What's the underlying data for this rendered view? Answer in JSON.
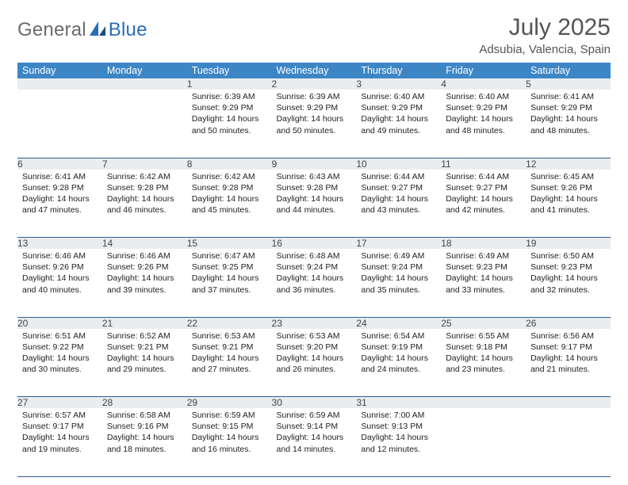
{
  "brand": {
    "part1": "General",
    "part2": "Blue"
  },
  "title": "July 2025",
  "location": "Adsubia, Valencia, Spain",
  "headerColors": {
    "band": "#3d86c6",
    "daynumBg": "#e9edf0",
    "rule": "#2f5e8f"
  },
  "weekdays": [
    "Sunday",
    "Monday",
    "Tuesday",
    "Wednesday",
    "Thursday",
    "Friday",
    "Saturday"
  ],
  "weeks": [
    [
      null,
      null,
      {
        "n": "1",
        "sr": "Sunrise: 6:39 AM",
        "ss": "Sunset: 9:29 PM",
        "d1": "Daylight: 14 hours",
        "d2": "and 50 minutes."
      },
      {
        "n": "2",
        "sr": "Sunrise: 6:39 AM",
        "ss": "Sunset: 9:29 PM",
        "d1": "Daylight: 14 hours",
        "d2": "and 50 minutes."
      },
      {
        "n": "3",
        "sr": "Sunrise: 6:40 AM",
        "ss": "Sunset: 9:29 PM",
        "d1": "Daylight: 14 hours",
        "d2": "and 49 minutes."
      },
      {
        "n": "4",
        "sr": "Sunrise: 6:40 AM",
        "ss": "Sunset: 9:29 PM",
        "d1": "Daylight: 14 hours",
        "d2": "and 48 minutes."
      },
      {
        "n": "5",
        "sr": "Sunrise: 6:41 AM",
        "ss": "Sunset: 9:29 PM",
        "d1": "Daylight: 14 hours",
        "d2": "and 48 minutes."
      }
    ],
    [
      {
        "n": "6",
        "sr": "Sunrise: 6:41 AM",
        "ss": "Sunset: 9:28 PM",
        "d1": "Daylight: 14 hours",
        "d2": "and 47 minutes."
      },
      {
        "n": "7",
        "sr": "Sunrise: 6:42 AM",
        "ss": "Sunset: 9:28 PM",
        "d1": "Daylight: 14 hours",
        "d2": "and 46 minutes."
      },
      {
        "n": "8",
        "sr": "Sunrise: 6:42 AM",
        "ss": "Sunset: 9:28 PM",
        "d1": "Daylight: 14 hours",
        "d2": "and 45 minutes."
      },
      {
        "n": "9",
        "sr": "Sunrise: 6:43 AM",
        "ss": "Sunset: 9:28 PM",
        "d1": "Daylight: 14 hours",
        "d2": "and 44 minutes."
      },
      {
        "n": "10",
        "sr": "Sunrise: 6:44 AM",
        "ss": "Sunset: 9:27 PM",
        "d1": "Daylight: 14 hours",
        "d2": "and 43 minutes."
      },
      {
        "n": "11",
        "sr": "Sunrise: 6:44 AM",
        "ss": "Sunset: 9:27 PM",
        "d1": "Daylight: 14 hours",
        "d2": "and 42 minutes."
      },
      {
        "n": "12",
        "sr": "Sunrise: 6:45 AM",
        "ss": "Sunset: 9:26 PM",
        "d1": "Daylight: 14 hours",
        "d2": "and 41 minutes."
      }
    ],
    [
      {
        "n": "13",
        "sr": "Sunrise: 6:46 AM",
        "ss": "Sunset: 9:26 PM",
        "d1": "Daylight: 14 hours",
        "d2": "and 40 minutes."
      },
      {
        "n": "14",
        "sr": "Sunrise: 6:46 AM",
        "ss": "Sunset: 9:26 PM",
        "d1": "Daylight: 14 hours",
        "d2": "and 39 minutes."
      },
      {
        "n": "15",
        "sr": "Sunrise: 6:47 AM",
        "ss": "Sunset: 9:25 PM",
        "d1": "Daylight: 14 hours",
        "d2": "and 37 minutes."
      },
      {
        "n": "16",
        "sr": "Sunrise: 6:48 AM",
        "ss": "Sunset: 9:24 PM",
        "d1": "Daylight: 14 hours",
        "d2": "and 36 minutes."
      },
      {
        "n": "17",
        "sr": "Sunrise: 6:49 AM",
        "ss": "Sunset: 9:24 PM",
        "d1": "Daylight: 14 hours",
        "d2": "and 35 minutes."
      },
      {
        "n": "18",
        "sr": "Sunrise: 6:49 AM",
        "ss": "Sunset: 9:23 PM",
        "d1": "Daylight: 14 hours",
        "d2": "and 33 minutes."
      },
      {
        "n": "19",
        "sr": "Sunrise: 6:50 AM",
        "ss": "Sunset: 9:23 PM",
        "d1": "Daylight: 14 hours",
        "d2": "and 32 minutes."
      }
    ],
    [
      {
        "n": "20",
        "sr": "Sunrise: 6:51 AM",
        "ss": "Sunset: 9:22 PM",
        "d1": "Daylight: 14 hours",
        "d2": "and 30 minutes."
      },
      {
        "n": "21",
        "sr": "Sunrise: 6:52 AM",
        "ss": "Sunset: 9:21 PM",
        "d1": "Daylight: 14 hours",
        "d2": "and 29 minutes."
      },
      {
        "n": "22",
        "sr": "Sunrise: 6:53 AM",
        "ss": "Sunset: 9:21 PM",
        "d1": "Daylight: 14 hours",
        "d2": "and 27 minutes."
      },
      {
        "n": "23",
        "sr": "Sunrise: 6:53 AM",
        "ss": "Sunset: 9:20 PM",
        "d1": "Daylight: 14 hours",
        "d2": "and 26 minutes."
      },
      {
        "n": "24",
        "sr": "Sunrise: 6:54 AM",
        "ss": "Sunset: 9:19 PM",
        "d1": "Daylight: 14 hours",
        "d2": "and 24 minutes."
      },
      {
        "n": "25",
        "sr": "Sunrise: 6:55 AM",
        "ss": "Sunset: 9:18 PM",
        "d1": "Daylight: 14 hours",
        "d2": "and 23 minutes."
      },
      {
        "n": "26",
        "sr": "Sunrise: 6:56 AM",
        "ss": "Sunset: 9:17 PM",
        "d1": "Daylight: 14 hours",
        "d2": "and 21 minutes."
      }
    ],
    [
      {
        "n": "27",
        "sr": "Sunrise: 6:57 AM",
        "ss": "Sunset: 9:17 PM",
        "d1": "Daylight: 14 hours",
        "d2": "and 19 minutes."
      },
      {
        "n": "28",
        "sr": "Sunrise: 6:58 AM",
        "ss": "Sunset: 9:16 PM",
        "d1": "Daylight: 14 hours",
        "d2": "and 18 minutes."
      },
      {
        "n": "29",
        "sr": "Sunrise: 6:59 AM",
        "ss": "Sunset: 9:15 PM",
        "d1": "Daylight: 14 hours",
        "d2": "and 16 minutes."
      },
      {
        "n": "30",
        "sr": "Sunrise: 6:59 AM",
        "ss": "Sunset: 9:14 PM",
        "d1": "Daylight: 14 hours",
        "d2": "and 14 minutes."
      },
      {
        "n": "31",
        "sr": "Sunrise: 7:00 AM",
        "ss": "Sunset: 9:13 PM",
        "d1": "Daylight: 14 hours",
        "d2": "and 12 minutes."
      },
      null,
      null
    ]
  ]
}
